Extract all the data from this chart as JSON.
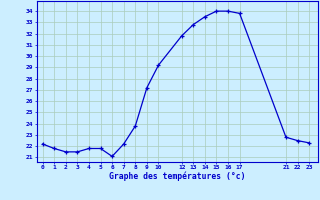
{
  "x": [
    0,
    1,
    2,
    3,
    4,
    5,
    6,
    7,
    8,
    9,
    10,
    12,
    13,
    14,
    15,
    16,
    17,
    21,
    22,
    23
  ],
  "y": [
    22.2,
    21.8,
    21.5,
    21.5,
    21.8,
    21.8,
    21.1,
    22.2,
    23.8,
    27.2,
    29.2,
    31.8,
    32.8,
    33.5,
    34.0,
    34.0,
    33.8,
    22.8,
    22.5,
    22.3
  ],
  "xticks": [
    0,
    1,
    2,
    3,
    4,
    5,
    6,
    7,
    8,
    9,
    10,
    12,
    13,
    14,
    15,
    16,
    17,
    21,
    22,
    23
  ],
  "yticks": [
    21,
    22,
    23,
    24,
    25,
    26,
    27,
    28,
    29,
    30,
    31,
    32,
    33,
    34
  ],
  "ylim": [
    20.6,
    34.9
  ],
  "xlim": [
    -0.5,
    23.8
  ],
  "xlabel": "Graphe des températures (°c)",
  "line_color": "#0000cc",
  "marker_color": "#0000cc",
  "bg_color": "#cceeff",
  "grid_color": "#aaccbb",
  "axis_color": "#0000cc",
  "tick_color": "#0000cc",
  "label_color": "#0000cc"
}
